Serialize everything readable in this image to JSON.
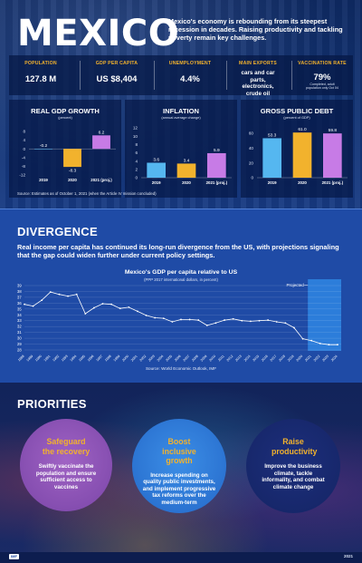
{
  "header": {
    "title": "MEXICO",
    "intro": "Mexico's economy is rebounding from its steepest recession in decades. Raising productivity and tackling poverty remain key challenges."
  },
  "stats": [
    {
      "label": "POPULATION",
      "value": "127.8 M"
    },
    {
      "label": "GDP PER CAPITA",
      "value": "US $8,404"
    },
    {
      "label": "UNEMPLOYMENT",
      "value": "4.4%"
    },
    {
      "label": "MAIN EXPORTS",
      "value": "cars and car parts, electronics, crude oil"
    },
    {
      "label": "VACCINATION RATE",
      "value": "79%",
      "note": "Completed, adult population only Oct 04"
    }
  ],
  "source1": "Source: Estimates as of October 1, 2021 (when the Article IV mission concluded)",
  "divergence": {
    "heading": "DIVERGENCE",
    "text": "Real income per capita has continued its long-run divergence from the US, with projections signaling that the gap could widen further under current policy settings.",
    "source": "Source: World Economic Outlook, IMF"
  },
  "priorities": {
    "heading": "PRIORITIES",
    "items": [
      {
        "title": "Safeguard the recovery",
        "body": "Swiftly vaccinate the population and ensure sufficient access to vaccines"
      },
      {
        "title": "Boost inclusive growth",
        "body": "Increase spending on quality public investments, and implement progressive tax reforms over the medium-term"
      },
      {
        "title": "Raise productivity",
        "body": "Improve the business climate, tackle informality, and combat climate change"
      }
    ]
  },
  "footer": {
    "logo": "IMF",
    "right": "2021"
  },
  "colors": {
    "gold": "#f2b22d",
    "sky": "#55b7f0",
    "violet": "#c77be6",
    "navy": "#17306e"
  },
  "chart_data": [
    {
      "type": "bar",
      "title": "REAL GDP GROWTH",
      "subtitle": "(percent)",
      "categories": [
        "2019",
        "2020",
        "2021 (proj.)"
      ],
      "values": [
        -0.2,
        -8.3,
        6.2
      ],
      "value_labels": [
        "-0.2",
        "-8.3",
        "6.2"
      ],
      "ylim": [
        -12,
        8
      ],
      "yticks": [
        "8",
        "4",
        "0",
        "-4",
        "-8",
        "-12"
      ],
      "grid": false
    },
    {
      "type": "bar",
      "title": "INFLATION",
      "subtitle": "(annual average change)",
      "categories": [
        "2019",
        "2020",
        "2021 (proj.)"
      ],
      "values": [
        3.6,
        3.4,
        5.9
      ],
      "value_labels": [
        "3.6",
        "3.4",
        "5.9"
      ],
      "ylim": [
        0,
        12
      ],
      "yticks": [
        "12",
        "10",
        "8",
        "6",
        "4",
        "2",
        "0"
      ],
      "grid": false
    },
    {
      "type": "bar",
      "title": "GROSS PUBLIC DEBT",
      "subtitle": "(percent of GDP)",
      "categories": [
        "2019",
        "2020",
        "2021 (proj.)"
      ],
      "values": [
        53.3,
        61.0,
        59.8
      ],
      "value_labels": [
        "53.3",
        "61.0",
        "59.8"
      ],
      "ylim": [
        0,
        60
      ],
      "yticks": [
        "60",
        "40",
        "20",
        "0"
      ],
      "grid": false
    },
    {
      "type": "line",
      "title": "Mexico's GDP per capita relative to US",
      "subtitle": "(PPP 2017 international dollars, in percent)",
      "x": [
        "1988",
        "1989",
        "1990",
        "1991",
        "1992",
        "1993",
        "1994",
        "1995",
        "1996",
        "1997",
        "1998",
        "1999",
        "2000",
        "2001",
        "2002",
        "2003",
        "2004",
        "2005",
        "2006",
        "2007",
        "2008",
        "2009",
        "2010",
        "2011",
        "2012",
        "2013",
        "2014",
        "2015",
        "2016",
        "2017",
        "2018",
        "2019",
        "2020",
        "2021",
        "2022",
        "2023",
        "2024"
      ],
      "values": [
        35.8,
        35.5,
        36.5,
        37.9,
        37.5,
        37.2,
        37.5,
        34.2,
        35.2,
        35.9,
        35.8,
        35.1,
        35.3,
        34.6,
        33.9,
        33.5,
        33.4,
        32.8,
        33.2,
        33.2,
        33.1,
        32.2,
        32.6,
        33.1,
        33.3,
        33.0,
        32.9,
        33.0,
        33.1,
        32.8,
        32.6,
        31.8,
        29.9,
        29.6,
        29.1,
        28.9,
        28.9
      ],
      "ylim": [
        28,
        39
      ],
      "yticks": [
        "39",
        "38",
        "37",
        "36",
        "35",
        "34",
        "33",
        "32",
        "31",
        "30",
        "29",
        "28"
      ],
      "projection_label": "Projected",
      "projection_start": "2021",
      "grid": true
    }
  ]
}
